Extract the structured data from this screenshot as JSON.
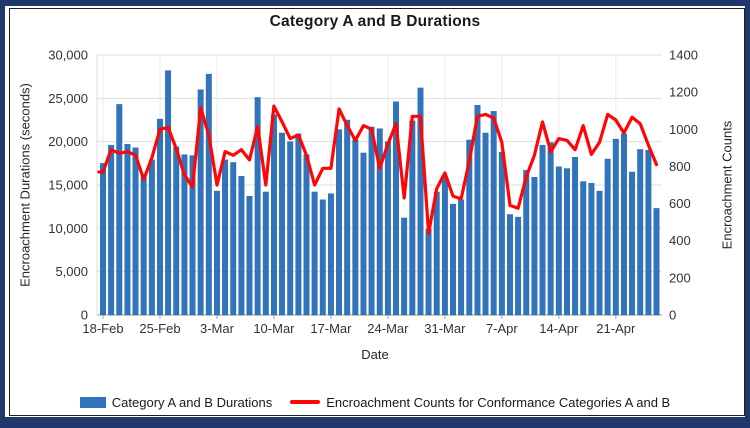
{
  "title": "Category A and B Durations",
  "colors": {
    "bar": "#2F74BD",
    "bar_edge": "#24619F",
    "line": "#FE0606",
    "frame": "#20386B",
    "inner_border": "#1F1F1F",
    "gridline": "#DEDEDE",
    "axis_line": "#B3B3B3"
  },
  "chart_data": {
    "type": "bar",
    "subtype": "combo-bar-line",
    "title": "Category A and B Durations",
    "xlabel": "Date",
    "grid": true,
    "legend_position": "bottom",
    "x": [
      "18-Feb",
      "19-Feb",
      "20-Feb",
      "21-Feb",
      "22-Feb",
      "23-Feb",
      "24-Feb",
      "25-Feb",
      "26-Feb",
      "27-Feb",
      "28-Feb",
      "29-Feb",
      "1-Mar",
      "2-Mar",
      "3-Mar",
      "4-Mar",
      "5-Mar",
      "6-Mar",
      "7-Mar",
      "8-Mar",
      "9-Mar",
      "10-Mar",
      "11-Mar",
      "12-Mar",
      "13-Mar",
      "14-Mar",
      "15-Mar",
      "16-Mar",
      "17-Mar",
      "18-Mar",
      "19-Mar",
      "20-Mar",
      "21-Mar",
      "22-Mar",
      "23-Mar",
      "24-Mar",
      "25-Mar",
      "26-Mar",
      "27-Mar",
      "28-Mar",
      "29-Mar",
      "30-Mar",
      "31-Mar",
      "1-Apr",
      "2-Apr",
      "3-Apr",
      "4-Apr",
      "5-Apr",
      "6-Apr",
      "7-Apr",
      "8-Apr",
      "9-Apr",
      "10-Apr",
      "11-Apr",
      "12-Apr",
      "13-Apr",
      "14-Apr",
      "15-Apr",
      "16-Apr",
      "17-Apr",
      "18-Apr",
      "19-Apr",
      "20-Apr",
      "21-Apr",
      "22-Apr",
      "23-Apr",
      "24-Apr",
      "25-Apr",
      "26-Apr"
    ],
    "x_tick_labels": [
      "18-Feb",
      "25-Feb",
      "3-Mar",
      "10-Mar",
      "17-Mar",
      "24-Mar",
      "31-Mar",
      "7-Apr",
      "14-Apr",
      "21-Apr"
    ],
    "x_tick_indices": [
      0,
      7,
      14,
      21,
      28,
      35,
      42,
      49,
      56,
      63
    ],
    "y_left": {
      "label": "Encroachment Durations (seconds)",
      "min": 0,
      "max": 30000,
      "step": 5000,
      "tick_labels": [
        "0",
        "5,000",
        "10,000",
        "15,000",
        "20,000",
        "25,000",
        "30,000"
      ]
    },
    "y_right": {
      "label": "Encroachment Counts",
      "min": 0,
      "max": 1400,
      "step": 200,
      "tick_labels": [
        "0",
        "200",
        "400",
        "600",
        "800",
        "1000",
        "1200",
        "1400"
      ]
    },
    "series": [
      {
        "name": "Category A and B Durations",
        "type": "bar",
        "axis": "left",
        "color": "#2F74BD",
        "values": [
          17500,
          19600,
          24300,
          19700,
          19300,
          16200,
          17900,
          22600,
          28200,
          19400,
          18500,
          18400,
          26000,
          27800,
          14300,
          17900,
          17600,
          16000,
          13700,
          25100,
          14200,
          23100,
          21000,
          20000,
          20900,
          18500,
          14200,
          13300,
          14000,
          21400,
          22500,
          20200,
          18700,
          21700,
          21500,
          20000,
          24600,
          11200,
          22400,
          26200,
          9900,
          14200,
          16000,
          12800,
          13300,
          20200,
          24200,
          21000,
          23500,
          18800,
          11600,
          11300,
          16700,
          15900,
          19600,
          19900,
          17100,
          16900,
          18200,
          15400,
          15200,
          14300,
          18000,
          20300,
          20900,
          16500,
          19100,
          19000,
          12300
        ]
      },
      {
        "name": "Encroachment Counts for Conformance Categories A and B",
        "type": "line",
        "axis": "right",
        "color": "#FE0606",
        "values": [
          770,
          890,
          870,
          880,
          860,
          730,
          845,
          1000,
          1010,
          895,
          755,
          690,
          1115,
          970,
          700,
          880,
          860,
          890,
          835,
          1015,
          700,
          1125,
          1040,
          950,
          970,
          860,
          700,
          790,
          790,
          1110,
          1020,
          940,
          1020,
          1000,
          790,
          920,
          1030,
          630,
          1070,
          1070,
          440,
          680,
          765,
          640,
          625,
          830,
          1070,
          1080,
          1060,
          930,
          590,
          575,
          745,
          860,
          1040,
          880,
          950,
          940,
          890,
          1020,
          865,
          930,
          1080,
          1050,
          980,
          1065,
          1030,
          915,
          810
        ]
      }
    ]
  },
  "legend": {
    "bar_label": "Category A and B Durations",
    "line_label": "Encroachment Counts for Conformance Categories A and B"
  }
}
